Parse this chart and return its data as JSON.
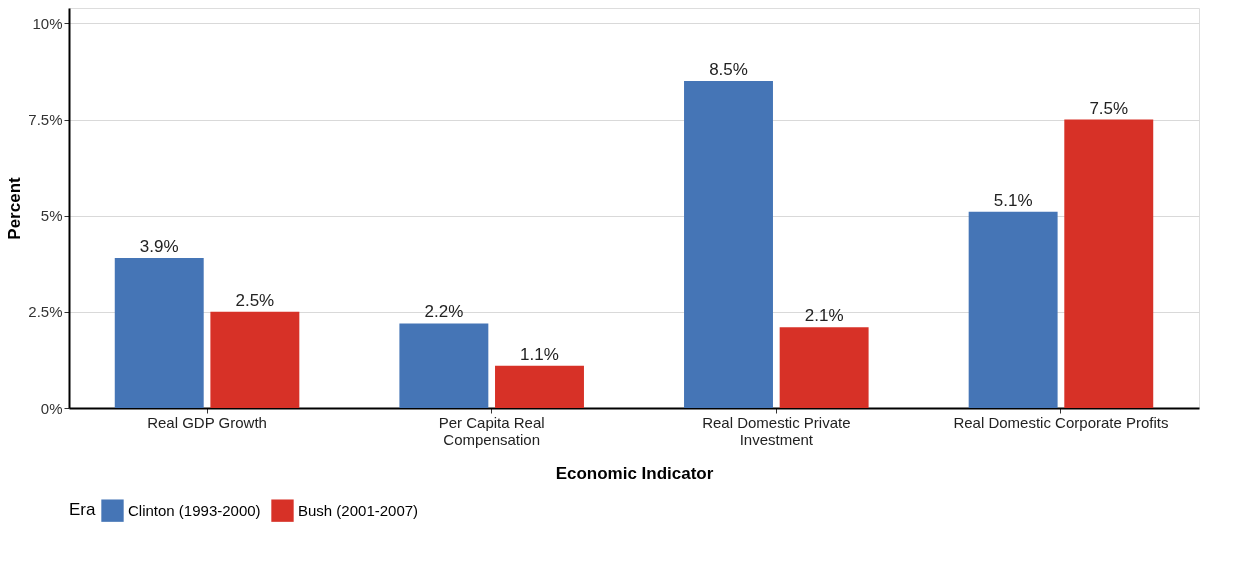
{
  "chart_data": {
    "type": "bar",
    "categories": [
      "Real GDP Growth",
      "Per Capita Real\nCompensation",
      "Real Domestic Private\nInvestment",
      "Real Domestic Corporate Profits"
    ],
    "series": [
      {
        "name": "Clinton (1993-2000)",
        "color": "#4575b6",
        "values": [
          3.9,
          2.2,
          8.5,
          5.1
        ],
        "value_labels": [
          "3.9%",
          "2.2%",
          "8.5%",
          "5.1%"
        ]
      },
      {
        "name": "Bush (2001-2007)",
        "color": "#d73127",
        "values": [
          2.5,
          1.1,
          2.1,
          7.5
        ],
        "value_labels": [
          "2.5%",
          "1.1%",
          "2.1%",
          "7.5%"
        ]
      }
    ],
    "xlabel": "Economic Indicator",
    "ylabel": "Percent",
    "legend_title": "Era",
    "ylim": [
      0,
      10.4
    ],
    "yticks": [
      {
        "value": 0,
        "label": "0%"
      },
      {
        "value": 2.5,
        "label": "2.5%"
      },
      {
        "value": 5,
        "label": "5%"
      },
      {
        "value": 7.5,
        "label": "7.5%"
      },
      {
        "value": 10,
        "label": "10%"
      }
    ],
    "grid": "y",
    "legend": "bottom"
  }
}
